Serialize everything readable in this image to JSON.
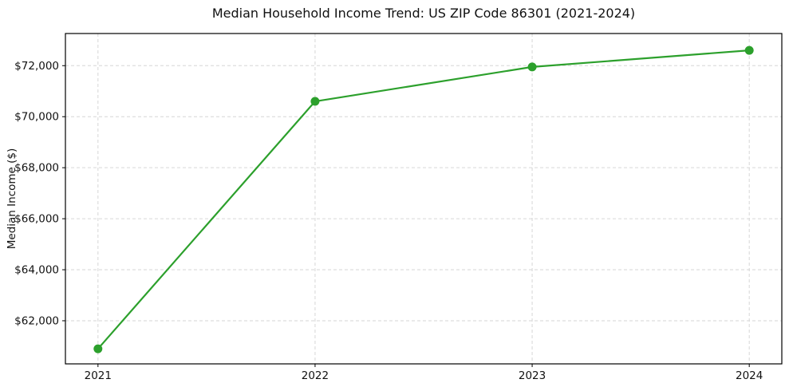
{
  "chart_data": {
    "type": "line",
    "title": "Median Household Income Trend: US ZIP Code 86301 (2021-2024)",
    "xlabel": "",
    "ylabel": "Median Income ($)",
    "x": [
      2021,
      2022,
      2023,
      2024
    ],
    "y": [
      60900,
      70600,
      71950,
      72600
    ],
    "xtick_labels": [
      "2021",
      "2022",
      "2023",
      "2024"
    ],
    "xticks": [
      2021,
      2022,
      2023,
      2024
    ],
    "ytick_labels": [
      "$62,000",
      "$64,000",
      "$66,000",
      "$68,000",
      "$70,000",
      "$72,000"
    ],
    "yticks": [
      62000,
      64000,
      66000,
      68000,
      70000,
      72000
    ],
    "xlim": [
      2020.85,
      2024.15
    ],
    "ylim": [
      60310,
      73260
    ],
    "grid": true,
    "grid_style": "dashed",
    "legend": false,
    "colors": {
      "line": "#2ca02c",
      "marker": "#2ca02c",
      "grid": "#d6d6d6",
      "spine": "#000000",
      "text": "#111111",
      "background": "#ffffff"
    }
  }
}
